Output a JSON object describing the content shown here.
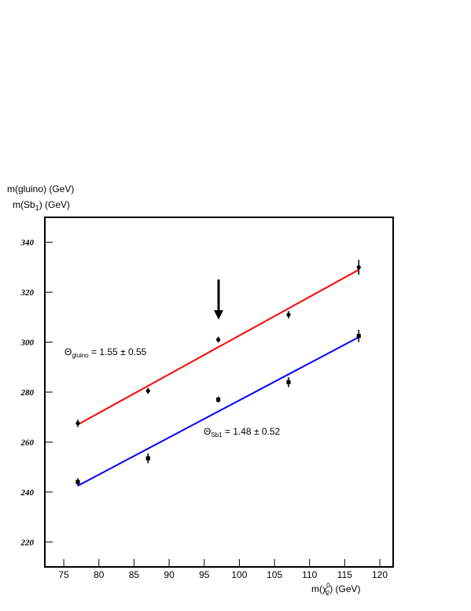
{
  "chart_data": {
    "type": "scatter",
    "ylabel": [
      [
        "m(gluino) (GeV)"
      ],
      [
        "m(Sb",
        "1",
        ") (GeV)"
      ]
    ],
    "xlabel": [
      "m(χ",
      "0",
      "2",
      ") (GeV)"
    ],
    "xlim": [
      72.3,
      121.9
    ],
    "ylim": [
      210,
      350
    ],
    "xticks": [
      75,
      80,
      85,
      90,
      95,
      100,
      105,
      110,
      115,
      120
    ],
    "yticks": [
      220,
      240,
      260,
      280,
      300,
      320,
      340
    ],
    "series": [
      {
        "marker": "circle",
        "color": "#000000",
        "x": [
          77,
          87,
          97,
          107,
          117
        ],
        "values": [
          267.5,
          280.5,
          301,
          311,
          330
        ],
        "errors": [
          1.5,
          1.2,
          1.2,
          1.5,
          3
        ]
      },
      {
        "marker": "square",
        "color": "#000000",
        "x": [
          77,
          87,
          97,
          107,
          117
        ],
        "values": [
          244,
          253.5,
          277,
          284,
          302.5
        ],
        "errors": [
          1.5,
          2,
          1.2,
          2,
          2.5
        ]
      }
    ],
    "fits": [
      {
        "color": "#ff0000",
        "x": [
          77,
          117
        ],
        "values": [
          267,
          329
        ]
      },
      {
        "color": "#0000ff",
        "x": [
          77,
          117
        ],
        "values": [
          242.5,
          302
        ]
      }
    ],
    "annotations": [
      {
        "parts": [
          "Θ",
          "gluino",
          " = 1.55 ± 0.55"
        ]
      },
      {
        "parts": [
          "Θ",
          "Sb1",
          " = 1.48 ± 0.52"
        ]
      }
    ]
  }
}
